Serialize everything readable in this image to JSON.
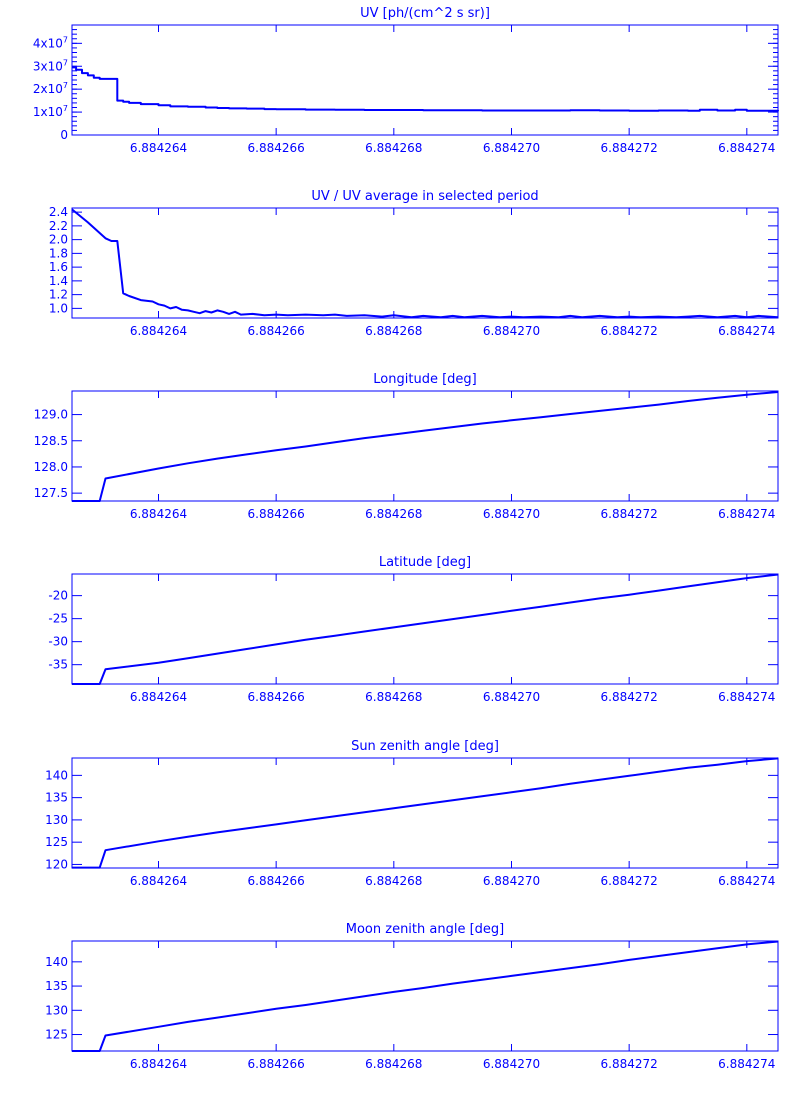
{
  "page": {
    "color": "#0000ff"
  },
  "chart_data": [
    {
      "id": "uv",
      "type": "line",
      "title": "UV [ph/(cm^2 s sr)]",
      "xlim": [
        6.88426253,
        6.88427453
      ],
      "ylim": [
        0,
        48000000
      ],
      "yticks": [
        0,
        10000000,
        20000000,
        30000000,
        40000000
      ],
      "ytick_labels": [
        "0",
        "1x10",
        "2x10",
        "3x10",
        "4x10"
      ],
      "ytick_exponent": "7",
      "xticks": [
        6.884264,
        6.884266,
        6.884268,
        6.88427,
        6.884272,
        6.884274
      ],
      "xtick_labels": [
        "6.884264",
        "6.884266",
        "6.884268",
        "6.884270",
        "6.884272",
        "6.884274"
      ],
      "minor_y_ticks": true,
      "step": true,
      "x": [
        6.88426253,
        6.8842626,
        6.8842627,
        6.8842628,
        6.8842629,
        6.884263,
        6.8842631,
        6.8842632,
        6.8842633,
        6.8842634,
        6.8842635,
        6.8842637,
        6.884264,
        6.8842642,
        6.8842645,
        6.8842648,
        6.884265,
        6.8842652,
        6.8842655,
        6.8842658,
        6.884266,
        6.8842665,
        6.884267,
        6.8842675,
        6.884268,
        6.8842685,
        6.884269,
        6.8842695,
        6.88427,
        6.8842705,
        6.884271,
        6.8842715,
        6.884272,
        6.8842725,
        6.884273,
        6.8842732,
        6.8842735,
        6.8842738,
        6.884274,
        6.88427453
      ],
      "y": [
        29500000,
        28500000,
        27000000,
        26000000,
        25000000,
        24500000,
        24500000,
        24500000,
        15000000,
        14500000,
        14000000,
        13500000,
        13000000,
        12500000,
        12300000,
        12000000,
        11800000,
        11600000,
        11500000,
        11300000,
        11200000,
        11100000,
        11000000,
        10900000,
        10900000,
        10800000,
        10800000,
        10700000,
        10700000,
        10700000,
        10800000,
        10700000,
        10600000,
        10700000,
        10600000,
        11000000,
        10700000,
        11000000,
        10600000,
        10400000
      ]
    },
    {
      "id": "uvratio",
      "type": "line",
      "title": "UV / UV average in selected period",
      "xlim": [
        6.88426253,
        6.88427453
      ],
      "ylim": [
        0.86,
        2.46
      ],
      "yticks": [
        1.0,
        1.2,
        1.4,
        1.6,
        1.8,
        2.0,
        2.2,
        2.4
      ],
      "ytick_labels": [
        "1.0",
        "1.2",
        "1.4",
        "1.6",
        "1.8",
        "2.0",
        "2.2",
        "2.4"
      ],
      "xticks": [
        6.884264,
        6.884266,
        6.884268,
        6.88427,
        6.884272,
        6.884274
      ],
      "xtick_labels": [
        "6.884264",
        "6.884266",
        "6.884268",
        "6.884270",
        "6.884272",
        "6.884274"
      ],
      "x": [
        6.88426253,
        6.8842628,
        6.8842631,
        6.8842632,
        6.8842633,
        6.8842634,
        6.8842635,
        6.8842637,
        6.8842639,
        6.884264,
        6.8842641,
        6.8842642,
        6.8842643,
        6.8842644,
        6.8842645,
        6.8842646,
        6.8842647,
        6.8842648,
        6.8842649,
        6.884265,
        6.8842651,
        6.8842652,
        6.8842653,
        6.8842654,
        6.8842656,
        6.8842658,
        6.884266,
        6.8842662,
        6.8842665,
        6.8842668,
        6.884267,
        6.8842672,
        6.8842675,
        6.8842678,
        6.884268,
        6.8842683,
        6.8842685,
        6.8842688,
        6.884269,
        6.8842692,
        6.8842695,
        6.8842698,
        6.88427,
        6.8842702,
        6.8842705,
        6.8842708,
        6.884271,
        6.8842712,
        6.8842715,
        6.8842718,
        6.884272,
        6.8842722,
        6.8842725,
        6.8842728,
        6.884273,
        6.8842732,
        6.8842735,
        6.8842738,
        6.884274,
        6.8842742,
        6.88427453
      ],
      "y": [
        2.44,
        2.25,
        2.02,
        1.98,
        1.98,
        1.22,
        1.18,
        1.12,
        1.1,
        1.06,
        1.04,
        1.0,
        1.02,
        0.98,
        0.97,
        0.95,
        0.93,
        0.96,
        0.94,
        0.97,
        0.95,
        0.92,
        0.95,
        0.91,
        0.92,
        0.9,
        0.91,
        0.9,
        0.91,
        0.9,
        0.91,
        0.89,
        0.9,
        0.88,
        0.9,
        0.87,
        0.89,
        0.87,
        0.89,
        0.87,
        0.89,
        0.87,
        0.88,
        0.87,
        0.88,
        0.87,
        0.89,
        0.87,
        0.89,
        0.87,
        0.88,
        0.87,
        0.88,
        0.87,
        0.88,
        0.89,
        0.87,
        0.89,
        0.87,
        0.89,
        0.87
      ]
    },
    {
      "id": "lon",
      "type": "line",
      "title": "Longitude [deg]",
      "xlim": [
        6.88426253,
        6.88427453
      ],
      "ylim": [
        127.35,
        129.45
      ],
      "yticks": [
        127.5,
        128.0,
        128.5,
        129.0
      ],
      "ytick_labels": [
        "127.5",
        "128.0",
        "128.5",
        "129.0"
      ],
      "xticks": [
        6.884264,
        6.884266,
        6.884268,
        6.88427,
        6.884272,
        6.884274
      ],
      "xtick_labels": [
        "6.884264",
        "6.884266",
        "6.884268",
        "6.884270",
        "6.884272",
        "6.884274"
      ],
      "x": [
        6.88426253,
        6.884263,
        6.8842631,
        6.884264,
        6.8842645,
        6.884265,
        6.8842655,
        6.884266,
        6.8842665,
        6.884267,
        6.8842675,
        6.884268,
        6.8842685,
        6.884269,
        6.8842695,
        6.88427,
        6.8842705,
        6.884271,
        6.8842715,
        6.884272,
        6.8842725,
        6.884273,
        6.8842735,
        6.884274,
        6.88427453
      ],
      "y": [
        127.35,
        127.35,
        127.78,
        127.97,
        128.07,
        128.16,
        128.24,
        128.32,
        128.39,
        128.47,
        128.55,
        128.62,
        128.69,
        128.76,
        128.83,
        128.89,
        128.95,
        129.01,
        129.07,
        129.13,
        129.19,
        129.26,
        129.32,
        129.38,
        129.43
      ]
    },
    {
      "id": "lat",
      "type": "line",
      "title": "Latitude [deg]",
      "xlim": [
        6.88426253,
        6.88427453
      ],
      "ylim": [
        -39.2,
        -15.3
      ],
      "yticks": [
        -35,
        -30,
        -25,
        -20
      ],
      "ytick_labels": [
        "-35",
        "-30",
        "-25",
        "-20"
      ],
      "xticks": [
        6.884264,
        6.884266,
        6.884268,
        6.88427,
        6.884272,
        6.884274
      ],
      "xtick_labels": [
        "6.884264",
        "6.884266",
        "6.884268",
        "6.884270",
        "6.884272",
        "6.884274"
      ],
      "x": [
        6.88426253,
        6.884263,
        6.8842631,
        6.884264,
        6.8842645,
        6.884265,
        6.8842655,
        6.884266,
        6.8842665,
        6.884267,
        6.8842675,
        6.884268,
        6.8842685,
        6.884269,
        6.8842695,
        6.88427,
        6.8842705,
        6.884271,
        6.8842715,
        6.884272,
        6.8842725,
        6.884273,
        6.8842735,
        6.884274,
        6.88427453
      ],
      "y": [
        -39.2,
        -39.2,
        -36.0,
        -34.6,
        -33.6,
        -32.6,
        -31.6,
        -30.6,
        -29.6,
        -28.7,
        -27.8,
        -26.9,
        -26.0,
        -25.1,
        -24.2,
        -23.3,
        -22.4,
        -21.5,
        -20.6,
        -19.8,
        -18.9,
        -18.0,
        -17.1,
        -16.2,
        -15.4
      ]
    },
    {
      "id": "sun",
      "type": "line",
      "title": "Sun zenith angle [deg]",
      "xlim": [
        6.88426253,
        6.88427453
      ],
      "ylim": [
        119.2,
        143.9
      ],
      "yticks": [
        120,
        125,
        130,
        135,
        140
      ],
      "ytick_labels": [
        "120",
        "125",
        "130",
        "135",
        "140"
      ],
      "xticks": [
        6.884264,
        6.884266,
        6.884268,
        6.88427,
        6.884272,
        6.884274
      ],
      "xtick_labels": [
        "6.884264",
        "6.884266",
        "6.884268",
        "6.884270",
        "6.884272",
        "6.884274"
      ],
      "x": [
        6.88426253,
        6.884263,
        6.8842631,
        6.884264,
        6.8842645,
        6.884265,
        6.8842655,
        6.884266,
        6.8842665,
        6.884267,
        6.8842675,
        6.884268,
        6.8842685,
        6.884269,
        6.8842695,
        6.88427,
        6.8842705,
        6.884271,
        6.8842715,
        6.884272,
        6.8842725,
        6.884273,
        6.8842735,
        6.884274,
        6.88427453
      ],
      "y": [
        119.3,
        119.3,
        123.2,
        125.2,
        126.2,
        127.2,
        128.1,
        129.0,
        129.9,
        130.8,
        131.7,
        132.6,
        133.5,
        134.4,
        135.3,
        136.2,
        137.1,
        138.1,
        139.0,
        139.9,
        140.8,
        141.7,
        142.4,
        143.2,
        143.8
      ]
    },
    {
      "id": "moon",
      "type": "line",
      "title": "Moon zenith angle [deg]",
      "xlim": [
        6.88426253,
        6.88427453
      ],
      "ylim": [
        121.6,
        144.3
      ],
      "yticks": [
        125,
        130,
        135,
        140
      ],
      "ytick_labels": [
        "125",
        "130",
        "135",
        "140"
      ],
      "xticks": [
        6.884264,
        6.884266,
        6.884268,
        6.88427,
        6.884272,
        6.884274
      ],
      "xtick_labels": [
        "6.884264",
        "6.884266",
        "6.884268",
        "6.884270",
        "6.884272",
        "6.884274"
      ],
      "x": [
        6.88426253,
        6.884263,
        6.8842631,
        6.884264,
        6.8842645,
        6.884265,
        6.8842655,
        6.884266,
        6.8842665,
        6.884267,
        6.8842675,
        6.884268,
        6.8842685,
        6.884269,
        6.8842695,
        6.88427,
        6.8842705,
        6.884271,
        6.8842715,
        6.884272,
        6.8842725,
        6.884273,
        6.8842735,
        6.884274,
        6.88427453
      ],
      "y": [
        121.6,
        121.6,
        124.8,
        126.6,
        127.6,
        128.5,
        129.4,
        130.3,
        131.1,
        132.0,
        132.9,
        133.8,
        134.6,
        135.5,
        136.3,
        137.1,
        137.9,
        138.7,
        139.5,
        140.4,
        141.2,
        142.0,
        142.8,
        143.6,
        144.2
      ]
    }
  ]
}
